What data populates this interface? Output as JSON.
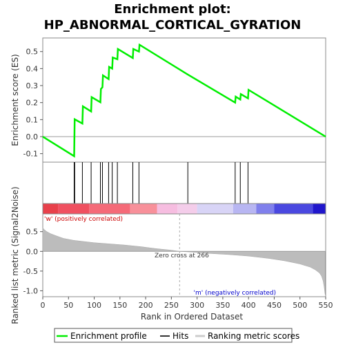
{
  "chart_data": {
    "type": "line",
    "title_line1": "Enrichment plot:",
    "title_line2": "HP_ABNORMAL_CORTICAL_GYRATION",
    "es_ylabel": "Enrichment score (ES)",
    "metric_ylabel": "Ranked list metric (Signal2Noise)",
    "xlabel": "Rank in Ordered Dataset",
    "xlim": [
      0,
      550
    ],
    "es_ylim": [
      -0.15,
      0.58
    ],
    "metric_ylim": [
      -1.15,
      0.95
    ],
    "x_ticks": [
      0,
      50,
      100,
      150,
      200,
      250,
      300,
      350,
      400,
      450,
      500,
      550
    ],
    "es_ticks": [
      -0.1,
      0.0,
      0.1,
      0.2,
      0.3,
      0.4,
      0.5
    ],
    "es_tick_labels": [
      "-0.1",
      "0.0",
      "0.1",
      "0.2",
      "0.3",
      "0.4",
      "0.5"
    ],
    "metric_ticks": [
      0.5,
      0.0,
      -0.5,
      -1.0
    ],
    "metric_tick_labels": [
      "0.5",
      "0.0",
      "-0.5",
      "-1.0"
    ],
    "enrichment_profile": {
      "x": [
        0,
        61,
        62,
        77,
        78,
        94,
        95,
        112,
        113,
        116,
        117,
        128,
        129,
        135,
        136,
        145,
        146,
        175,
        176,
        187,
        188,
        282,
        374,
        375,
        384,
        385,
        399,
        400,
        550
      ],
      "y": [
        0.0,
        -0.115,
        0.102,
        0.077,
        0.178,
        0.148,
        0.232,
        0.202,
        0.28,
        0.29,
        0.36,
        0.338,
        0.41,
        0.4,
        0.465,
        0.455,
        0.515,
        0.462,
        0.515,
        0.5,
        0.54,
        0.365,
        0.2,
        0.235,
        0.218,
        0.25,
        0.225,
        0.275,
        0.0
      ]
    },
    "hits": [
      61,
      62,
      77,
      94,
      112,
      116,
      128,
      135,
      145,
      175,
      187,
      282,
      374,
      384,
      399
    ],
    "zero_cross_rank": 266,
    "zero_cross_label": "Zero cross at 266",
    "pos_label": "'w' (positively correlated)",
    "neg_label": "'m' (negatively correlated)",
    "metric_curve": {
      "x": [
        0,
        3,
        8,
        15,
        25,
        40,
        60,
        80,
        100,
        130,
        160,
        190,
        220,
        250,
        266,
        290,
        320,
        360,
        400,
        440,
        470,
        500,
        520,
        530,
        538,
        542,
        545,
        547,
        549
      ],
      "y": [
        0.6,
        0.55,
        0.5,
        0.45,
        0.4,
        0.33,
        0.28,
        0.25,
        0.22,
        0.19,
        0.16,
        0.12,
        0.07,
        0.03,
        0.0,
        -0.02,
        -0.05,
        -0.08,
        -0.12,
        -0.18,
        -0.24,
        -0.32,
        -0.4,
        -0.47,
        -0.55,
        -0.63,
        -0.75,
        -0.9,
        -1.1
      ]
    },
    "band_colors": [
      {
        "from": 0,
        "to": 30,
        "color": "#e8404a"
      },
      {
        "from": 30,
        "to": 90,
        "color": "#f05060"
      },
      {
        "from": 90,
        "to": 170,
        "color": "#f56a78"
      },
      {
        "from": 170,
        "to": 222,
        "color": "#f8909a"
      },
      {
        "from": 222,
        "to": 262,
        "color": "#f6bde0"
      },
      {
        "from": 262,
        "to": 300,
        "color": "#f4cdea"
      },
      {
        "from": 300,
        "to": 370,
        "color": "#d8d4f6"
      },
      {
        "from": 370,
        "to": 415,
        "color": "#b8b6f2"
      },
      {
        "from": 415,
        "to": 450,
        "color": "#8080ec"
      },
      {
        "from": 450,
        "to": 525,
        "color": "#4a48e0"
      },
      {
        "from": 525,
        "to": 550,
        "color": "#2016cc"
      }
    ],
    "colors": {
      "profile": "#00ee00",
      "hit": "#000000",
      "metric_fill": "#bcbcbc",
      "zero_line": "#999999",
      "pos_text": "#cc0000",
      "neg_text": "#0000cc"
    }
  },
  "legend": {
    "items": [
      {
        "label": "Enrichment profile",
        "color": "#00ee00",
        "kind": "line"
      },
      {
        "label": "Hits",
        "color": "#333333",
        "kind": "tick"
      },
      {
        "label": "Ranking metric scores",
        "color": "#cccccc",
        "kind": "bar"
      }
    ]
  }
}
